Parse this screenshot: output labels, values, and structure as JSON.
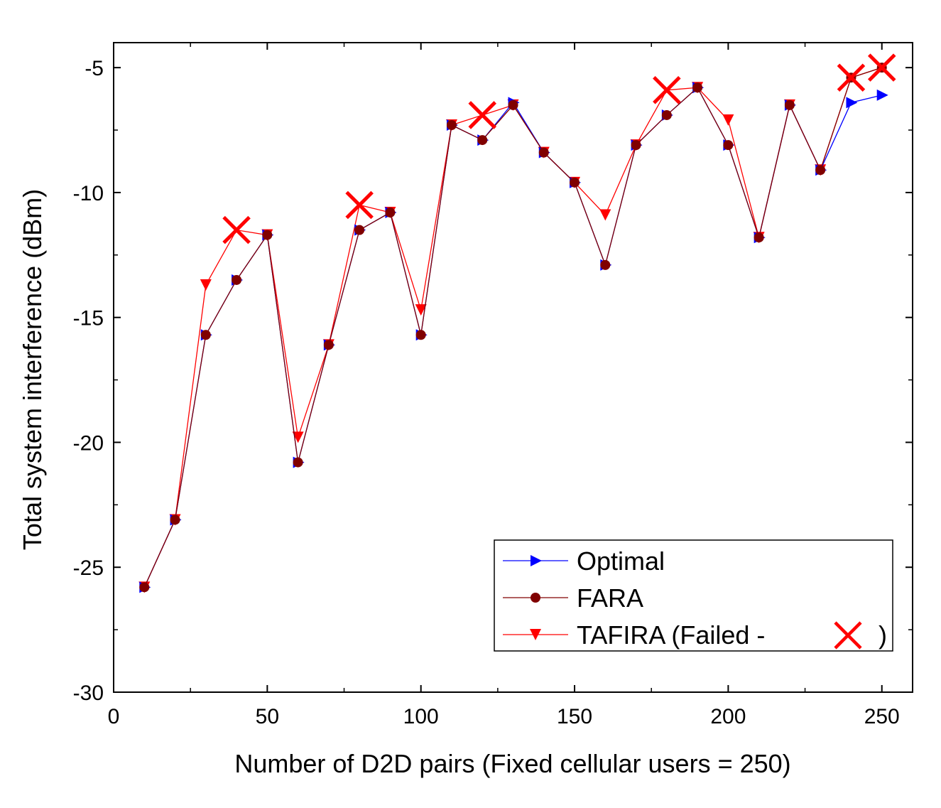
{
  "chart_data": {
    "type": "line",
    "xlabel": "Number of D2D pairs (Fixed cellular users = 250)",
    "ylabel": "Total system interference (dBm)",
    "xlim": [
      0,
      260
    ],
    "ylim": [
      -30,
      -4
    ],
    "xticks": [
      0,
      50,
      100,
      150,
      200,
      250
    ],
    "yticks": [
      -30,
      -25,
      -20,
      -15,
      -10,
      -5
    ],
    "grid": false,
    "legend_position": "bottom-right",
    "series": [
      {
        "name": "Optimal",
        "color": "#0000ff",
        "marker": "triangle-right",
        "x": [
          10,
          20,
          30,
          40,
          50,
          60,
          70,
          80,
          90,
          100,
          110,
          120,
          130,
          140,
          150,
          160,
          170,
          180,
          190,
          200,
          210,
          220,
          230,
          240,
          250
        ],
        "y": [
          -25.8,
          -23.1,
          -15.7,
          -13.5,
          -11.7,
          -20.8,
          -16.1,
          -11.5,
          -10.8,
          -15.7,
          -7.3,
          -7.9,
          -6.4,
          -8.4,
          -9.6,
          -12.9,
          -8.1,
          -6.9,
          -5.8,
          -8.1,
          -11.8,
          -6.5,
          -9.1,
          -6.4,
          -6.1
        ]
      },
      {
        "name": "FARA",
        "color": "#800000",
        "marker": "circle",
        "x": [
          10,
          20,
          30,
          40,
          50,
          60,
          70,
          80,
          90,
          100,
          110,
          120,
          130,
          140,
          150,
          160,
          170,
          180,
          190,
          200,
          210,
          220,
          230,
          240,
          250
        ],
        "y": [
          -25.8,
          -23.1,
          -15.7,
          -13.5,
          -11.7,
          -20.8,
          -16.1,
          -11.5,
          -10.8,
          -15.7,
          -7.3,
          -7.9,
          -6.5,
          -8.4,
          -9.6,
          -12.9,
          -8.1,
          -6.9,
          -5.8,
          -8.1,
          -11.8,
          -6.5,
          -9.1,
          -5.4,
          -5.0
        ]
      },
      {
        "name": "TAFIRA (Failed -",
        "name_suffix": ")",
        "color": "#ff0000",
        "marker": "triangle-down",
        "x": [
          10,
          20,
          30,
          40,
          50,
          60,
          70,
          80,
          90,
          100,
          110,
          120,
          130,
          140,
          150,
          160,
          170,
          180,
          190,
          200,
          210,
          220,
          230,
          240,
          250
        ],
        "y": [
          -25.8,
          -23.1,
          -13.7,
          -11.5,
          -11.7,
          -19.8,
          -16.1,
          -10.5,
          -10.8,
          -14.7,
          -7.3,
          -6.9,
          -6.5,
          -8.4,
          -9.6,
          -10.9,
          -8.1,
          -5.9,
          -5.8,
          -7.1,
          -11.8,
          -6.5,
          -9.1,
          -5.4,
          -5.0
        ],
        "failed_x": [
          40,
          80,
          120,
          180,
          240,
          250
        ]
      }
    ]
  }
}
